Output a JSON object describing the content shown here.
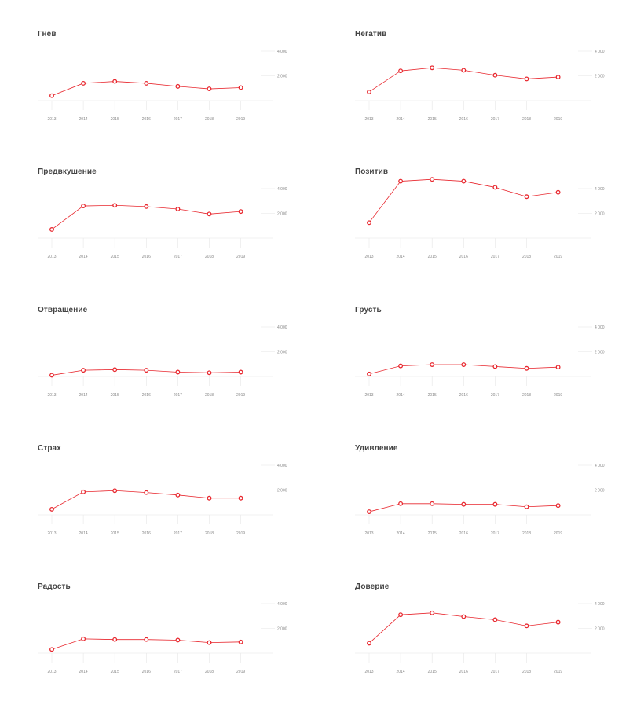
{
  "chart_data": [
    {
      "type": "line",
      "title": "Гнев",
      "x": [
        "2013",
        "2014",
        "2015",
        "2016",
        "2017",
        "2018",
        "2019"
      ],
      "y": [
        400,
        1400,
        1550,
        1400,
        1150,
        950,
        1050
      ],
      "ylim": [
        0,
        5000
      ],
      "yticks": [
        "2 000",
        "4 000"
      ],
      "ytick_values": [
        2000,
        4000
      ],
      "color": "#e8272e"
    },
    {
      "type": "line",
      "title": "Негатив",
      "x": [
        "2013",
        "2014",
        "2015",
        "2016",
        "2017",
        "2018",
        "2019"
      ],
      "y": [
        700,
        2400,
        2650,
        2450,
        2050,
        1750,
        1900
      ],
      "ylim": [
        0,
        5000
      ],
      "yticks": [
        "2 000",
        "4 000"
      ],
      "ytick_values": [
        2000,
        4000
      ],
      "color": "#e8272e"
    },
    {
      "type": "line",
      "title": "Предвкушение",
      "x": [
        "2013",
        "2014",
        "2015",
        "2016",
        "2017",
        "2018",
        "2019"
      ],
      "y": [
        700,
        2600,
        2650,
        2550,
        2350,
        1950,
        2150
      ],
      "ylim": [
        0,
        5000
      ],
      "yticks": [
        "2 000",
        "4 000"
      ],
      "ytick_values": [
        2000,
        4000
      ],
      "color": "#e8272e"
    },
    {
      "type": "line",
      "title": "Позитив",
      "x": [
        "2013",
        "2014",
        "2015",
        "2016",
        "2017",
        "2018",
        "2019"
      ],
      "y": [
        1250,
        4600,
        4750,
        4600,
        4100,
        3350,
        3700
      ],
      "ylim": [
        0,
        5000
      ],
      "yticks": [
        "2 000",
        "4 000"
      ],
      "ytick_values": [
        2000,
        4000
      ],
      "color": "#e8272e"
    },
    {
      "type": "line",
      "title": "Отвращение",
      "x": [
        "2013",
        "2014",
        "2015",
        "2016",
        "2017",
        "2018",
        "2019"
      ],
      "y": [
        100,
        500,
        550,
        500,
        350,
        300,
        350
      ],
      "ylim": [
        0,
        5000
      ],
      "yticks": [
        "2 000",
        "4 000"
      ],
      "ytick_values": [
        2000,
        4000
      ],
      "color": "#e8272e"
    },
    {
      "type": "line",
      "title": "Грусть",
      "x": [
        "2013",
        "2014",
        "2015",
        "2016",
        "2017",
        "2018",
        "2019"
      ],
      "y": [
        200,
        850,
        950,
        950,
        800,
        650,
        750
      ],
      "ylim": [
        0,
        5000
      ],
      "yticks": [
        "2 000",
        "4 000"
      ],
      "ytick_values": [
        2000,
        4000
      ],
      "color": "#e8272e"
    },
    {
      "type": "line",
      "title": "Страх",
      "x": [
        "2013",
        "2014",
        "2015",
        "2016",
        "2017",
        "2018",
        "2019"
      ],
      "y": [
        450,
        1850,
        1950,
        1800,
        1600,
        1350,
        1350
      ],
      "ylim": [
        0,
        5000
      ],
      "yticks": [
        "2 000",
        "4 000"
      ],
      "ytick_values": [
        2000,
        4000
      ],
      "color": "#e8272e"
    },
    {
      "type": "line",
      "title": "Удивление",
      "x": [
        "2013",
        "2014",
        "2015",
        "2016",
        "2017",
        "2018",
        "2019"
      ],
      "y": [
        250,
        900,
        900,
        850,
        850,
        650,
        750
      ],
      "ylim": [
        0,
        5000
      ],
      "yticks": [
        "2 000",
        "4 000"
      ],
      "ytick_values": [
        2000,
        4000
      ],
      "color": "#e8272e"
    },
    {
      "type": "line",
      "title": "Радость",
      "x": [
        "2013",
        "2014",
        "2015",
        "2016",
        "2017",
        "2018",
        "2019"
      ],
      "y": [
        300,
        1150,
        1100,
        1100,
        1050,
        850,
        900
      ],
      "ylim": [
        0,
        5000
      ],
      "yticks": [
        "2 000",
        "4 000"
      ],
      "ytick_values": [
        2000,
        4000
      ],
      "color": "#e8272e"
    },
    {
      "type": "line",
      "title": "Доверие",
      "x": [
        "2013",
        "2014",
        "2015",
        "2016",
        "2017",
        "2018",
        "2019"
      ],
      "y": [
        800,
        3100,
        3250,
        2950,
        2700,
        2200,
        2500
      ],
      "ylim": [
        0,
        5000
      ],
      "yticks": [
        "2 000",
        "4 000"
      ],
      "ytick_values": [
        2000,
        4000
      ],
      "color": "#e8272e"
    }
  ]
}
